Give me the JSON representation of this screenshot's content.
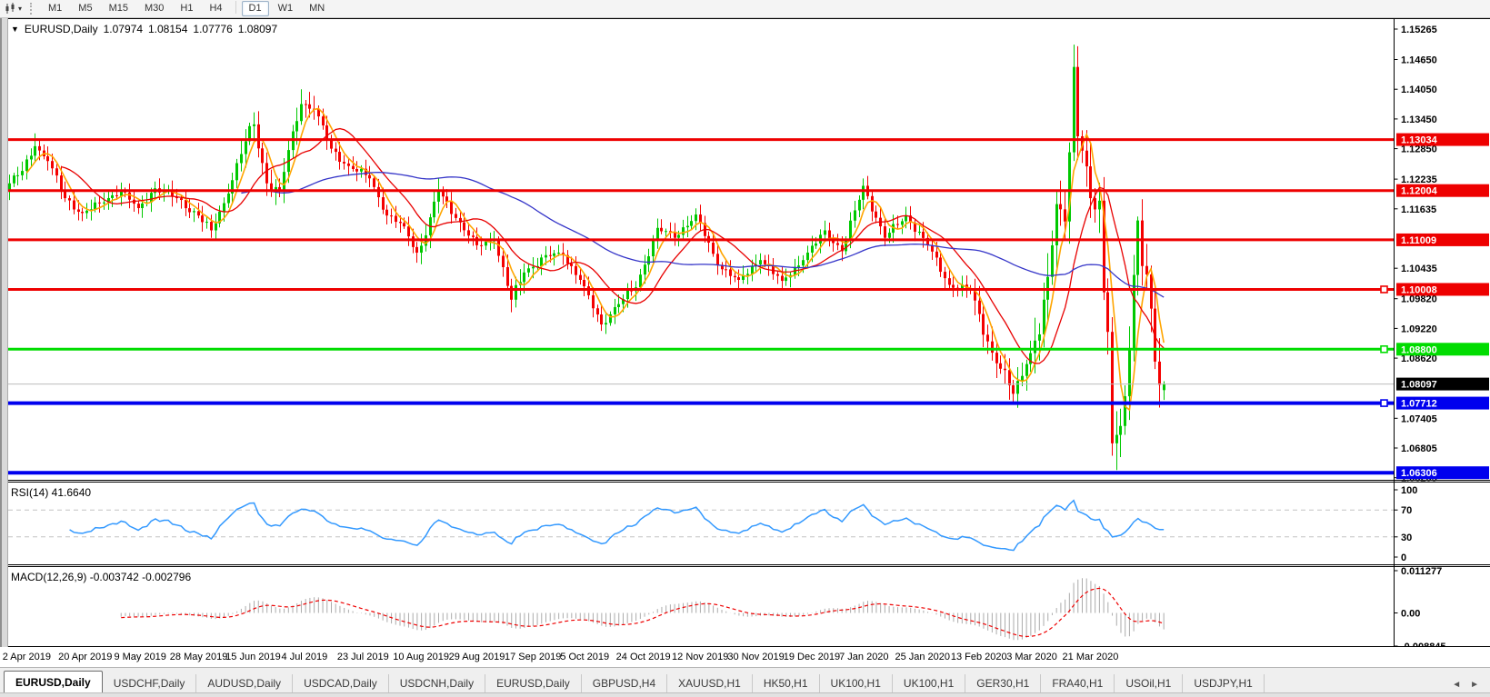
{
  "toolbar": {
    "timeframes": [
      {
        "label": "M1"
      },
      {
        "label": "M5"
      },
      {
        "label": "M15"
      },
      {
        "label": "M30"
      },
      {
        "label": "H1"
      },
      {
        "label": "H4"
      },
      {
        "label": "D1",
        "sep_before": true,
        "active": true
      },
      {
        "label": "W1"
      },
      {
        "label": "MN"
      }
    ],
    "selected": "D1"
  },
  "chart_header": {
    "collapse_arrow": "▼",
    "symbol": "EURUSD,Daily",
    "open": "1.07974",
    "high": "1.08154",
    "low": "1.07776",
    "close": "1.08097"
  },
  "price_axis": {
    "ticks": [
      "1.15265",
      "1.14650",
      "1.14050",
      "1.13450",
      "1.12850",
      "1.12235",
      "1.11635",
      "1.10435",
      "1.09820",
      "1.09220",
      "1.08620",
      "1.07405",
      "1.06805",
      "1.06205"
    ]
  },
  "hlines": [
    {
      "price": "1.13034",
      "value": 1.13034,
      "color": "#EE0000",
      "thickness": 3,
      "handle": false
    },
    {
      "price": "1.12004",
      "value": 1.12004,
      "color": "#EE0000",
      "thickness": 3,
      "handle": false
    },
    {
      "price": "1.11009",
      "value": 1.11009,
      "color": "#EE0000",
      "thickness": 3,
      "handle": false
    },
    {
      "price": "1.10008",
      "value": 1.10008,
      "color": "#EE0000",
      "thickness": 3,
      "handle": true
    },
    {
      "price": "1.08800",
      "value": 1.088,
      "color": "#00DC00",
      "thickness": 3,
      "handle": true
    },
    {
      "price": "1.07712",
      "value": 1.07712,
      "color": "#0000EE",
      "thickness": 4,
      "handle": true
    },
    {
      "price": "1.06306",
      "value": 1.06306,
      "color": "#0000EE",
      "thickness": 4,
      "handle": false
    }
  ],
  "current_price": {
    "text": "1.08097",
    "value": 1.08097,
    "line_color": "#BDBDBD",
    "label_bg": "#000000",
    "label_fg": "#FFFFFF"
  },
  "rsi": {
    "label": "RSI(14) 41.6640",
    "period": 14,
    "value": 41.664,
    "levels": [
      "100",
      "70",
      "30",
      "0"
    ],
    "upper": 70,
    "lower": 30,
    "line_color": "#3399FF",
    "level_color": "#C4C4C4"
  },
  "macd": {
    "label": "MACD(12,26,9) -0.003742 -0.002796",
    "fast": 12,
    "slow": 26,
    "signal_period": 9,
    "macd_value": -0.003742,
    "signal_value": -0.002796,
    "axis": [
      "0.011277",
      "0.00",
      "-0.008845"
    ],
    "axis_values": [
      0.011277,
      0.0,
      -0.008845
    ],
    "hist_color": "#ABABAB",
    "signal_color": "#EE0000"
  },
  "date_axis": [
    "2 Apr 2019",
    "20 Apr 2019",
    "9 May 2019",
    "28 May 2019",
    "15 Jun 2019",
    "4 Jul 2019",
    "23 Jul 2019",
    "10 Aug 2019",
    "29 Aug 2019",
    "17 Sep 2019",
    "5 Oct 2019",
    "24 Oct 2019",
    "12 Nov 2019",
    "30 Nov 2019",
    "19 Dec 2019",
    "7 Jan 2020",
    "25 Jan 2020",
    "13 Feb 2020",
    "3 Mar 2020",
    "21 Mar 2020"
  ],
  "tabs": {
    "items": [
      {
        "label": "EURUSD,Daily",
        "active": true
      },
      {
        "label": "USDCHF,Daily"
      },
      {
        "label": "AUDUSD,Daily"
      },
      {
        "label": "USDCAD,Daily"
      },
      {
        "label": "USDCNH,Daily"
      },
      {
        "label": "EURUSD,Daily"
      },
      {
        "label": "GBPUSD,H4"
      },
      {
        "label": "XAUUSD,H1"
      },
      {
        "label": "HK50,H1"
      },
      {
        "label": "UK100,H1"
      },
      {
        "label": "UK100,H1"
      },
      {
        "label": "GER30,H1"
      },
      {
        "label": "FRA40,H1"
      },
      {
        "label": "USOil,H1"
      },
      {
        "label": "USDJPY,H1"
      }
    ],
    "nav_left": "◄",
    "nav_right": "►"
  },
  "chart_data": {
    "type": "candlestick",
    "symbol": "EURUSD",
    "timeframe": "Daily",
    "x_range": [
      "2 Apr 2019",
      "6 Apr 2020"
    ],
    "price_range_visible": [
      1.06145,
      1.15467
    ],
    "up_color": "#00C800",
    "down_color": "#F40000",
    "price_keyframes": [
      [
        0,
        1.1215
      ],
      [
        3,
        1.124
      ],
      [
        6,
        1.129
      ],
      [
        9,
        1.126
      ],
      [
        13,
        1.1185
      ],
      [
        17,
        1.1155
      ],
      [
        21,
        1.1175
      ],
      [
        26,
        1.12
      ],
      [
        30,
        1.1165
      ],
      [
        34,
        1.1205
      ],
      [
        39,
        1.1185
      ],
      [
        44,
        1.115
      ],
      [
        47,
        1.112
      ],
      [
        50,
        1.1175
      ],
      [
        55,
        1.13
      ],
      [
        57,
        1.1334
      ],
      [
        60,
        1.1215
      ],
      [
        63,
        1.12
      ],
      [
        66,
        1.132
      ],
      [
        68,
        1.1375
      ],
      [
        71,
        1.1365
      ],
      [
        75,
        1.1285
      ],
      [
        79,
        1.125
      ],
      [
        84,
        1.1225
      ],
      [
        88,
        1.115
      ],
      [
        92,
        1.1128
      ],
      [
        95,
        1.1075
      ],
      [
        97,
        1.111
      ],
      [
        100,
        1.12
      ],
      [
        104,
        1.1145
      ],
      [
        109,
        1.109
      ],
      [
        113,
        1.11
      ],
      [
        117,
        1.098
      ],
      [
        120,
        1.1035
      ],
      [
        125,
        1.107
      ],
      [
        129,
        1.107
      ],
      [
        133,
        1.102
      ],
      [
        138,
        1.093
      ],
      [
        141,
        1.0965
      ],
      [
        146,
        1.1005
      ],
      [
        151,
        1.1125
      ],
      [
        155,
        1.1105
      ],
      [
        160,
        1.1152
      ],
      [
        165,
        1.105
      ],
      [
        170,
        1.102
      ],
      [
        175,
        1.106
      ],
      [
        180,
        1.1018
      ],
      [
        185,
        1.106
      ],
      [
        190,
        1.112
      ],
      [
        194,
        1.1078
      ],
      [
        199,
        1.121
      ],
      [
        204,
        1.1105
      ],
      [
        209,
        1.115
      ],
      [
        214,
        1.109
      ],
      [
        219,
        1.101
      ],
      [
        224,
        1.0998
      ],
      [
        229,
        1.0873
      ],
      [
        234,
        1.079
      ],
      [
        237,
        1.085
      ],
      [
        240,
        1.091
      ],
      [
        242,
        1.1026
      ],
      [
        244,
        1.1173
      ],
      [
        246,
        1.1138
      ],
      [
        248,
        1.145
      ],
      [
        249,
        1.131
      ],
      [
        250,
        1.1281
      ],
      [
        252,
        1.1185
      ],
      [
        254,
        1.118
      ],
      [
        255,
        1.0995
      ],
      [
        256,
        1.0915
      ],
      [
        257,
        1.069
      ],
      [
        258,
        1.0707
      ],
      [
        259,
        1.0725
      ],
      [
        260,
        1.0785
      ],
      [
        261,
        1.088
      ],
      [
        262,
        1.103
      ],
      [
        263,
        1.114
      ],
      [
        264,
        1.1048
      ],
      [
        265,
        1.1031
      ],
      [
        266,
        1.0962
      ],
      [
        267,
        1.0855
      ],
      [
        268,
        1.0808
      ],
      [
        269,
        1.08097
      ]
    ],
    "vol_segments": [
      [
        0,
        1.0
      ],
      [
        54,
        1.4
      ],
      [
        72,
        1.0
      ],
      [
        95,
        1.3
      ],
      [
        101,
        1.0
      ],
      [
        116,
        1.3
      ],
      [
        121,
        1.0
      ],
      [
        225,
        1.5
      ],
      [
        239,
        2.4
      ]
    ],
    "overrides": {
      "6": {
        "h": 1.1316
      },
      "68": {
        "h": 1.1405
      },
      "233": {
        "l": 1.0778
      },
      "248": {
        "h": 1.1495
      },
      "257": {
        "l": 1.0665
      },
      "258": {
        "l": 1.0636
      },
      "263": {
        "h": 1.1148
      },
      "269": {
        "o": 1.07974,
        "h": 1.08154,
        "l": 1.07776,
        "c": 1.08097
      }
    },
    "indicators": [
      {
        "name": "MA fast",
        "type": "sma",
        "period": 5,
        "color": "#FFA500"
      },
      {
        "name": "MA mid",
        "type": "sma",
        "period": 13,
        "color": "#E80000"
      },
      {
        "name": "MA slow",
        "type": "sma",
        "period": 55,
        "color": "#3434C8"
      },
      {
        "name": "RSI",
        "type": "rsi",
        "period": 14,
        "current": 41.664
      },
      {
        "name": "MACD",
        "type": "macd",
        "fast": 12,
        "slow": 26,
        "signal": 9,
        "current_macd": -0.003742,
        "current_signal": -0.002796
      }
    ],
    "horizontal_levels": [
      1.13034,
      1.12004,
      1.11009,
      1.10008,
      1.088,
      1.07712,
      1.06306
    ]
  }
}
